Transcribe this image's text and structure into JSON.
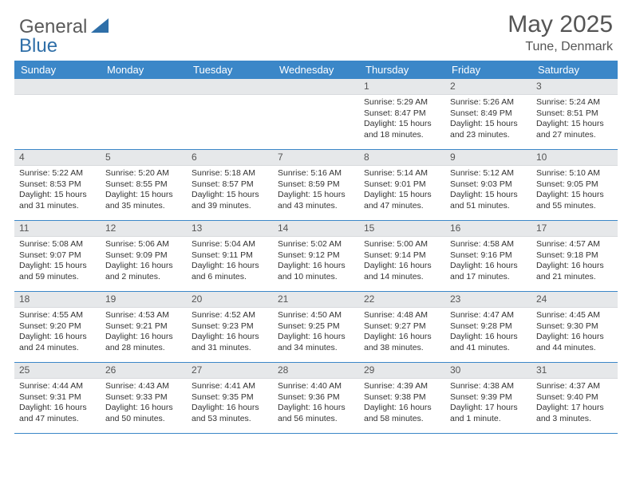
{
  "brand": {
    "general": "General",
    "blue": "Blue"
  },
  "title": "May 2025",
  "location": "Tune, Denmark",
  "colors": {
    "header_bg": "#3b87c8",
    "header_text": "#ffffff",
    "daynum_bg": "#e6e8ea",
    "border": "#3b87c8",
    "text": "#333333",
    "title_text": "#555555",
    "logo_gray": "#5a5a5a",
    "logo_blue": "#2f6fa8"
  },
  "weekdays": [
    "Sunday",
    "Monday",
    "Tuesday",
    "Wednesday",
    "Thursday",
    "Friday",
    "Saturday"
  ],
  "weeks": [
    [
      {
        "empty": true
      },
      {
        "empty": true
      },
      {
        "empty": true
      },
      {
        "empty": true
      },
      {
        "day": "1",
        "sunrise": "Sunrise: 5:29 AM",
        "sunset": "Sunset: 8:47 PM",
        "daylight": "Daylight: 15 hours and 18 minutes."
      },
      {
        "day": "2",
        "sunrise": "Sunrise: 5:26 AM",
        "sunset": "Sunset: 8:49 PM",
        "daylight": "Daylight: 15 hours and 23 minutes."
      },
      {
        "day": "3",
        "sunrise": "Sunrise: 5:24 AM",
        "sunset": "Sunset: 8:51 PM",
        "daylight": "Daylight: 15 hours and 27 minutes."
      }
    ],
    [
      {
        "day": "4",
        "sunrise": "Sunrise: 5:22 AM",
        "sunset": "Sunset: 8:53 PM",
        "daylight": "Daylight: 15 hours and 31 minutes."
      },
      {
        "day": "5",
        "sunrise": "Sunrise: 5:20 AM",
        "sunset": "Sunset: 8:55 PM",
        "daylight": "Daylight: 15 hours and 35 minutes."
      },
      {
        "day": "6",
        "sunrise": "Sunrise: 5:18 AM",
        "sunset": "Sunset: 8:57 PM",
        "daylight": "Daylight: 15 hours and 39 minutes."
      },
      {
        "day": "7",
        "sunrise": "Sunrise: 5:16 AM",
        "sunset": "Sunset: 8:59 PM",
        "daylight": "Daylight: 15 hours and 43 minutes."
      },
      {
        "day": "8",
        "sunrise": "Sunrise: 5:14 AM",
        "sunset": "Sunset: 9:01 PM",
        "daylight": "Daylight: 15 hours and 47 minutes."
      },
      {
        "day": "9",
        "sunrise": "Sunrise: 5:12 AM",
        "sunset": "Sunset: 9:03 PM",
        "daylight": "Daylight: 15 hours and 51 minutes."
      },
      {
        "day": "10",
        "sunrise": "Sunrise: 5:10 AM",
        "sunset": "Sunset: 9:05 PM",
        "daylight": "Daylight: 15 hours and 55 minutes."
      }
    ],
    [
      {
        "day": "11",
        "sunrise": "Sunrise: 5:08 AM",
        "sunset": "Sunset: 9:07 PM",
        "daylight": "Daylight: 15 hours and 59 minutes."
      },
      {
        "day": "12",
        "sunrise": "Sunrise: 5:06 AM",
        "sunset": "Sunset: 9:09 PM",
        "daylight": "Daylight: 16 hours and 2 minutes."
      },
      {
        "day": "13",
        "sunrise": "Sunrise: 5:04 AM",
        "sunset": "Sunset: 9:11 PM",
        "daylight": "Daylight: 16 hours and 6 minutes."
      },
      {
        "day": "14",
        "sunrise": "Sunrise: 5:02 AM",
        "sunset": "Sunset: 9:12 PM",
        "daylight": "Daylight: 16 hours and 10 minutes."
      },
      {
        "day": "15",
        "sunrise": "Sunrise: 5:00 AM",
        "sunset": "Sunset: 9:14 PM",
        "daylight": "Daylight: 16 hours and 14 minutes."
      },
      {
        "day": "16",
        "sunrise": "Sunrise: 4:58 AM",
        "sunset": "Sunset: 9:16 PM",
        "daylight": "Daylight: 16 hours and 17 minutes."
      },
      {
        "day": "17",
        "sunrise": "Sunrise: 4:57 AM",
        "sunset": "Sunset: 9:18 PM",
        "daylight": "Daylight: 16 hours and 21 minutes."
      }
    ],
    [
      {
        "day": "18",
        "sunrise": "Sunrise: 4:55 AM",
        "sunset": "Sunset: 9:20 PM",
        "daylight": "Daylight: 16 hours and 24 minutes."
      },
      {
        "day": "19",
        "sunrise": "Sunrise: 4:53 AM",
        "sunset": "Sunset: 9:21 PM",
        "daylight": "Daylight: 16 hours and 28 minutes."
      },
      {
        "day": "20",
        "sunrise": "Sunrise: 4:52 AM",
        "sunset": "Sunset: 9:23 PM",
        "daylight": "Daylight: 16 hours and 31 minutes."
      },
      {
        "day": "21",
        "sunrise": "Sunrise: 4:50 AM",
        "sunset": "Sunset: 9:25 PM",
        "daylight": "Daylight: 16 hours and 34 minutes."
      },
      {
        "day": "22",
        "sunrise": "Sunrise: 4:48 AM",
        "sunset": "Sunset: 9:27 PM",
        "daylight": "Daylight: 16 hours and 38 minutes."
      },
      {
        "day": "23",
        "sunrise": "Sunrise: 4:47 AM",
        "sunset": "Sunset: 9:28 PM",
        "daylight": "Daylight: 16 hours and 41 minutes."
      },
      {
        "day": "24",
        "sunrise": "Sunrise: 4:45 AM",
        "sunset": "Sunset: 9:30 PM",
        "daylight": "Daylight: 16 hours and 44 minutes."
      }
    ],
    [
      {
        "day": "25",
        "sunrise": "Sunrise: 4:44 AM",
        "sunset": "Sunset: 9:31 PM",
        "daylight": "Daylight: 16 hours and 47 minutes."
      },
      {
        "day": "26",
        "sunrise": "Sunrise: 4:43 AM",
        "sunset": "Sunset: 9:33 PM",
        "daylight": "Daylight: 16 hours and 50 minutes."
      },
      {
        "day": "27",
        "sunrise": "Sunrise: 4:41 AM",
        "sunset": "Sunset: 9:35 PM",
        "daylight": "Daylight: 16 hours and 53 minutes."
      },
      {
        "day": "28",
        "sunrise": "Sunrise: 4:40 AM",
        "sunset": "Sunset: 9:36 PM",
        "daylight": "Daylight: 16 hours and 56 minutes."
      },
      {
        "day": "29",
        "sunrise": "Sunrise: 4:39 AM",
        "sunset": "Sunset: 9:38 PM",
        "daylight": "Daylight: 16 hours and 58 minutes."
      },
      {
        "day": "30",
        "sunrise": "Sunrise: 4:38 AM",
        "sunset": "Sunset: 9:39 PM",
        "daylight": "Daylight: 17 hours and 1 minute."
      },
      {
        "day": "31",
        "sunrise": "Sunrise: 4:37 AM",
        "sunset": "Sunset: 9:40 PM",
        "daylight": "Daylight: 17 hours and 3 minutes."
      }
    ]
  ]
}
